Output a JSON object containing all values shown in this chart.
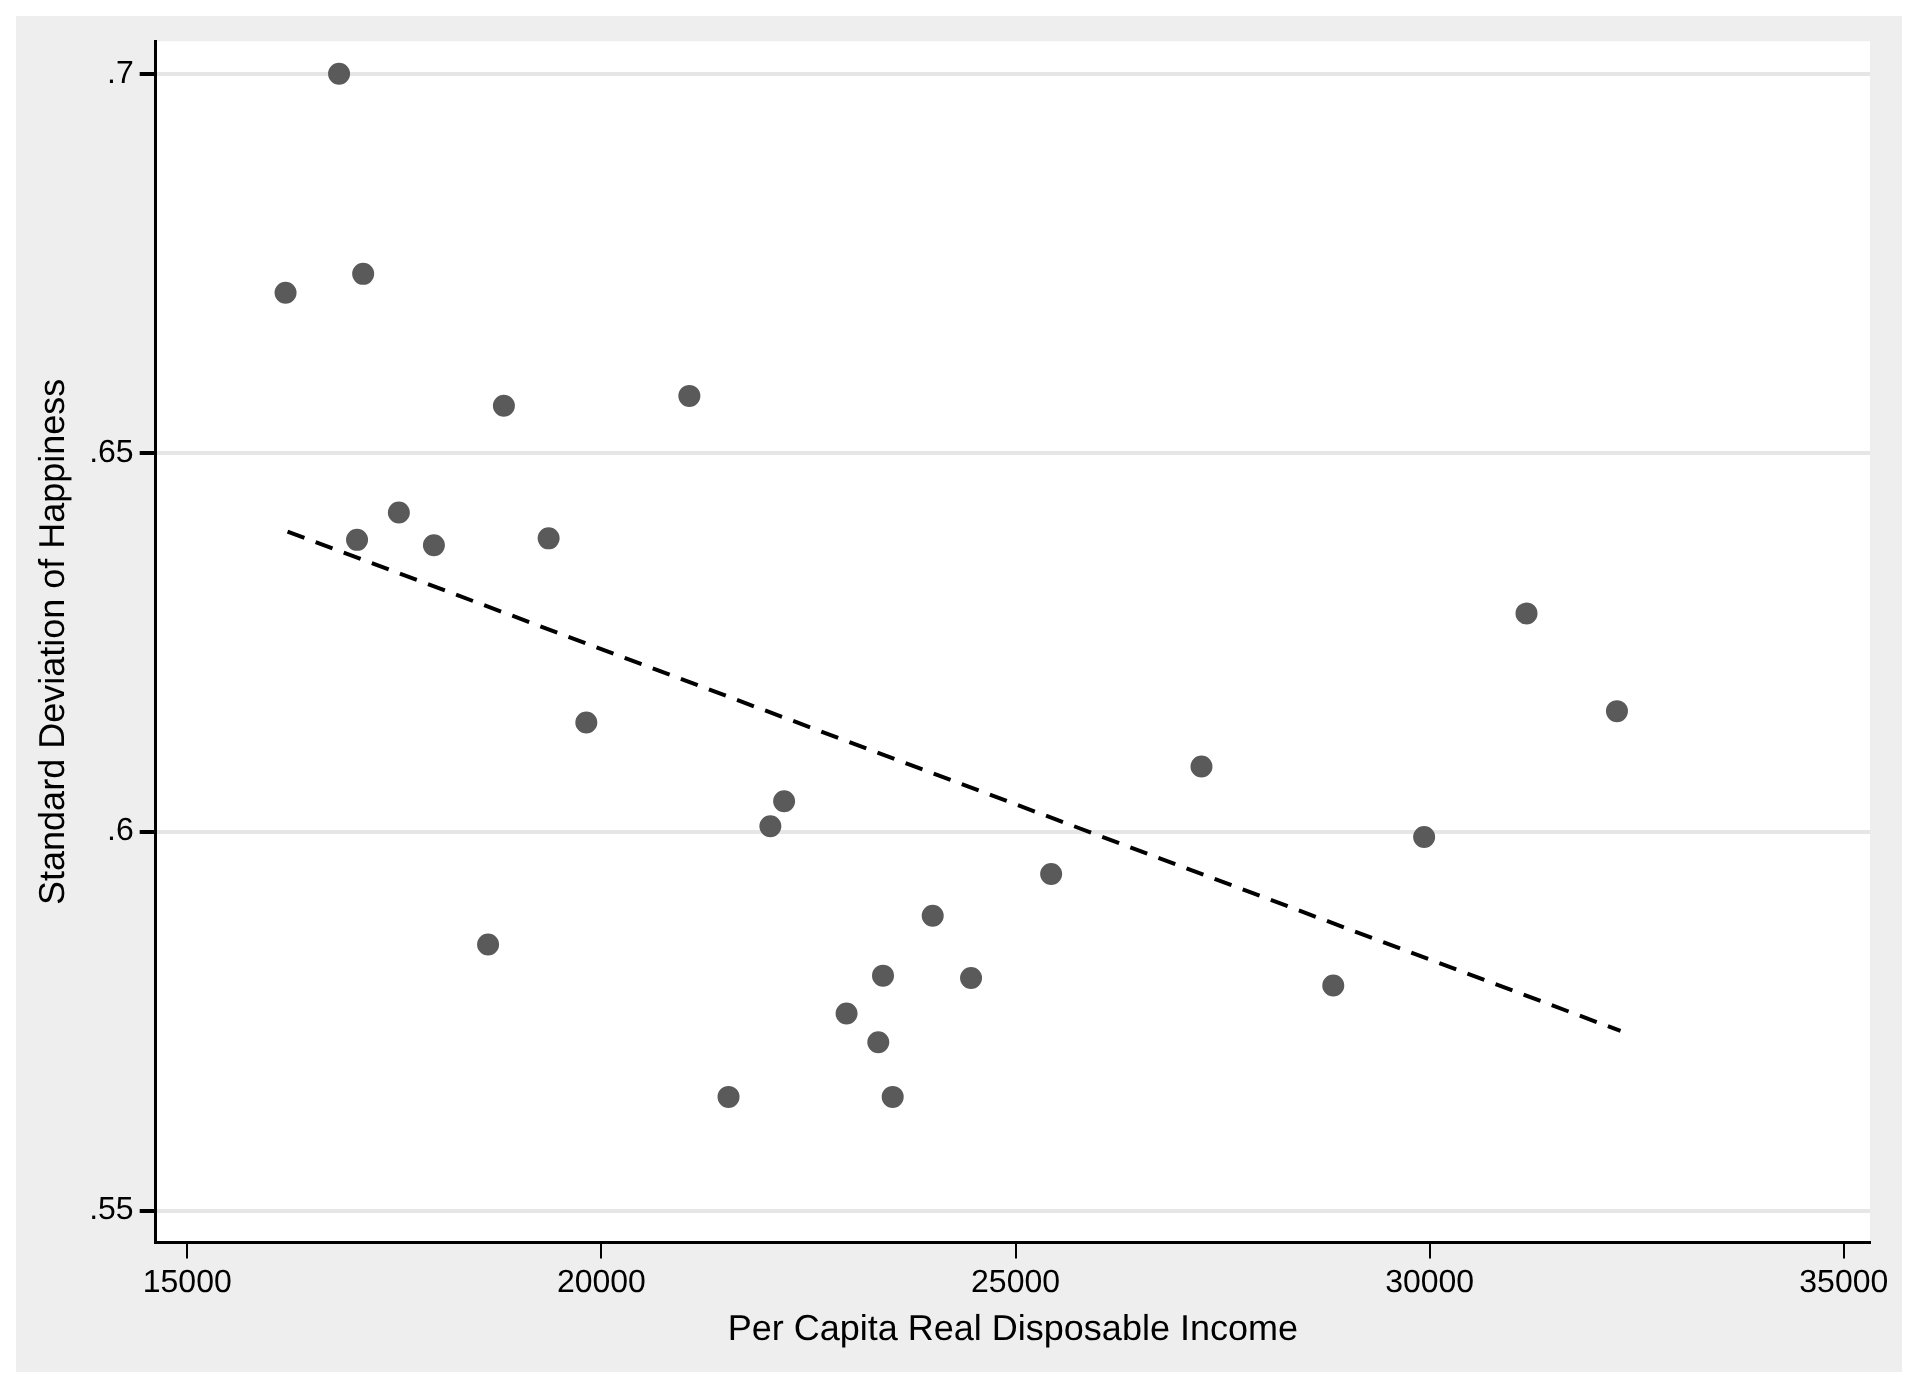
{
  "chart_data": {
    "type": "scatter",
    "xlabel": "Per Capita Real Disposable Income",
    "ylabel": "Standard Deviation of Happiness",
    "xlim": [
      14619,
      35316
    ],
    "xticks": [
      15000,
      20000,
      25000,
      30000,
      35000
    ],
    "ylim": [
      0.5458,
      0.7043
    ],
    "yticks": [
      {
        "value": 0.55,
        "label": ".55"
      },
      {
        "value": 0.6,
        "label": ".6"
      },
      {
        "value": 0.65,
        "label": ".65"
      },
      {
        "value": 0.7,
        "label": ".7"
      }
    ],
    "grid": "y",
    "legend": false,
    "marker": "circle",
    "series": [
      {
        "type": "scatter",
        "color": "#5a5a5a",
        "x": [
          16833,
          16187,
          17124,
          18823,
          21062,
          17555,
          17050,
          17978,
          19363,
          19818,
          18632,
          22206,
          22040,
          21535,
          23517,
          24000,
          23400,
          24463,
          22960,
          23343,
          25430,
          27245,
          28836,
          29933,
          31169,
          32261
        ],
        "values": [
          0.7,
          0.6711,
          0.6736,
          0.6562,
          0.6575,
          0.6421,
          0.6385,
          0.6378,
          0.6387,
          0.6144,
          0.5851,
          0.604,
          0.6007,
          0.565,
          0.565,
          0.5889,
          0.581,
          0.5807,
          0.576,
          0.5722,
          0.5944,
          0.6086,
          0.5797,
          0.5993,
          0.6288,
          0.6159
        ]
      },
      {
        "type": "line",
        "color": "#000000",
        "line_style": "dashed",
        "marker": "none",
        "x": [
          16211,
          32304
        ],
        "values": [
          0.6396,
          0.5737
        ]
      }
    ]
  }
}
